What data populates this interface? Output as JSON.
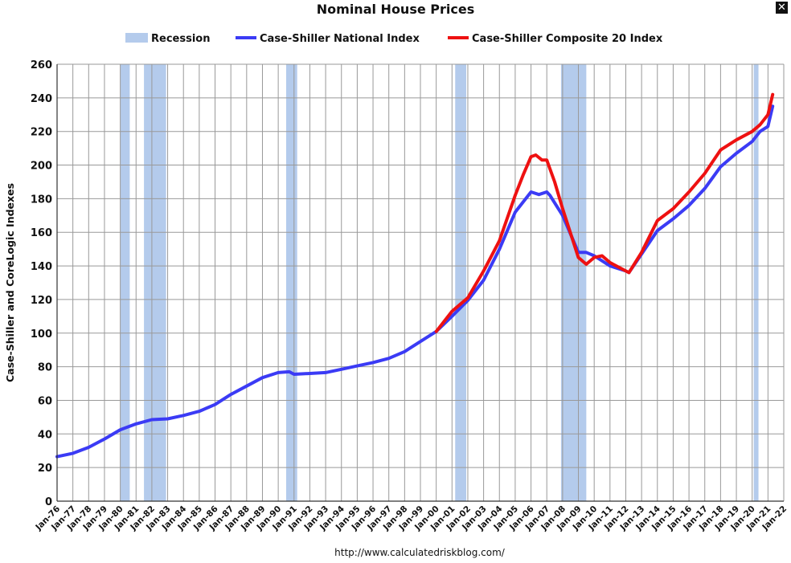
{
  "chart_data": {
    "type": "line",
    "title": "Nominal House Prices",
    "ylabel": "Case-Shiller and CoreLogic Indexes",
    "xlabel": "",
    "source": "http://www.calculatedriskblog.com/",
    "ylim": [
      0,
      260
    ],
    "yticks": [
      0,
      20,
      40,
      60,
      80,
      100,
      120,
      140,
      160,
      180,
      200,
      220,
      240,
      260
    ],
    "xlim": [
      1976.0,
      2022.0
    ],
    "xtick_labels": [
      "Jan-76",
      "Jan-77",
      "Jan-78",
      "Jan-79",
      "Jan-80",
      "Jan-81",
      "Jan-82",
      "Jan-83",
      "Jan-84",
      "Jan-85",
      "Jan-86",
      "Jan-87",
      "Jan-88",
      "Jan-89",
      "Jan-90",
      "Jan-91",
      "Jan-92",
      "Jan-93",
      "Jan-94",
      "Jan-95",
      "Jan-96",
      "Jan-97",
      "Jan-98",
      "Jan-99",
      "Jan-00",
      "Jan-01",
      "Jan-02",
      "Jan-03",
      "Jan-04",
      "Jan-05",
      "Jan-06",
      "Jan-07",
      "Jan-08",
      "Jan-09",
      "Jan-10",
      "Jan-11",
      "Jan-12",
      "Jan-13",
      "Jan-14",
      "Jan-15",
      "Jan-16",
      "Jan-17",
      "Jan-18",
      "Jan-19",
      "Jan-20",
      "Jan-21",
      "Jan-22"
    ],
    "grid": true,
    "legend": {
      "position": "top",
      "entries": [
        {
          "label": "Recession",
          "color": "#b4cbec",
          "kind": "band"
        },
        {
          "label": "Case-Shiller National Index",
          "color": "#3b3bf5",
          "kind": "line"
        },
        {
          "label": "Case-Shiller Composite 20 Index",
          "color": "#ee1111",
          "kind": "line"
        }
      ]
    },
    "recessions": [
      {
        "start": 1980.0,
        "end": 1980.6
      },
      {
        "start": 1981.5,
        "end": 1982.9
      },
      {
        "start": 1990.5,
        "end": 1991.2
      },
      {
        "start": 2001.2,
        "end": 2001.9
      },
      {
        "start": 2007.9,
        "end": 2009.5
      },
      {
        "start": 2020.1,
        "end": 2020.4
      }
    ],
    "series": [
      {
        "name": "Case-Shiller National Index",
        "color": "#3b3bf5",
        "x": [
          1976,
          1977,
          1978,
          1979,
          1980,
          1981,
          1982,
          1983,
          1984,
          1985,
          1986,
          1987,
          1988,
          1989,
          1990,
          1990.7,
          1991,
          1992,
          1993,
          1994,
          1995,
          1996,
          1997,
          1998,
          1999,
          2000,
          2001,
          2002,
          2003,
          2004,
          2005,
          2006,
          2006.5,
          2007,
          2007.2,
          2008,
          2009,
          2009.5,
          2010,
          2011,
          2012,
          2012.2,
          2013,
          2014,
          2015,
          2016,
          2017,
          2018,
          2019,
          2020,
          2020.5,
          2021,
          2021.3
        ],
        "y": [
          26.5,
          28.5,
          32,
          37,
          42.5,
          46,
          48.5,
          49,
          51,
          53.5,
          57.5,
          63.5,
          68.5,
          73.5,
          76.5,
          77,
          75.5,
          76,
          76.5,
          78.5,
          80.5,
          82.5,
          85,
          89,
          95,
          101,
          110,
          119.5,
          131.5,
          150,
          172,
          184,
          182.5,
          184,
          182,
          170,
          148,
          148,
          146,
          140,
          137,
          136,
          147,
          161,
          168,
          176,
          186,
          199,
          207,
          214,
          220,
          223,
          235
        ]
      },
      {
        "name": "Case-Shiller Composite 20 Index",
        "color": "#ee1111",
        "x": [
          2000,
          2001,
          2002,
          2003,
          2004,
          2005,
          2005.5,
          2006,
          2006.3,
          2006.7,
          2007,
          2007.5,
          2008,
          2009,
          2009.5,
          2010,
          2010.5,
          2011,
          2012,
          2012.2,
          2013,
          2014,
          2015,
          2016,
          2017,
          2018,
          2019,
          2020,
          2020.5,
          2021,
          2021.3
        ],
        "y": [
          101,
          113,
          121,
          137,
          155,
          182,
          194,
          205,
          206,
          203,
          203,
          190,
          174,
          145,
          141,
          145,
          146,
          142,
          137,
          136,
          148,
          167,
          174,
          184,
          195,
          209,
          215,
          220,
          224,
          230,
          242
        ]
      }
    ]
  }
}
